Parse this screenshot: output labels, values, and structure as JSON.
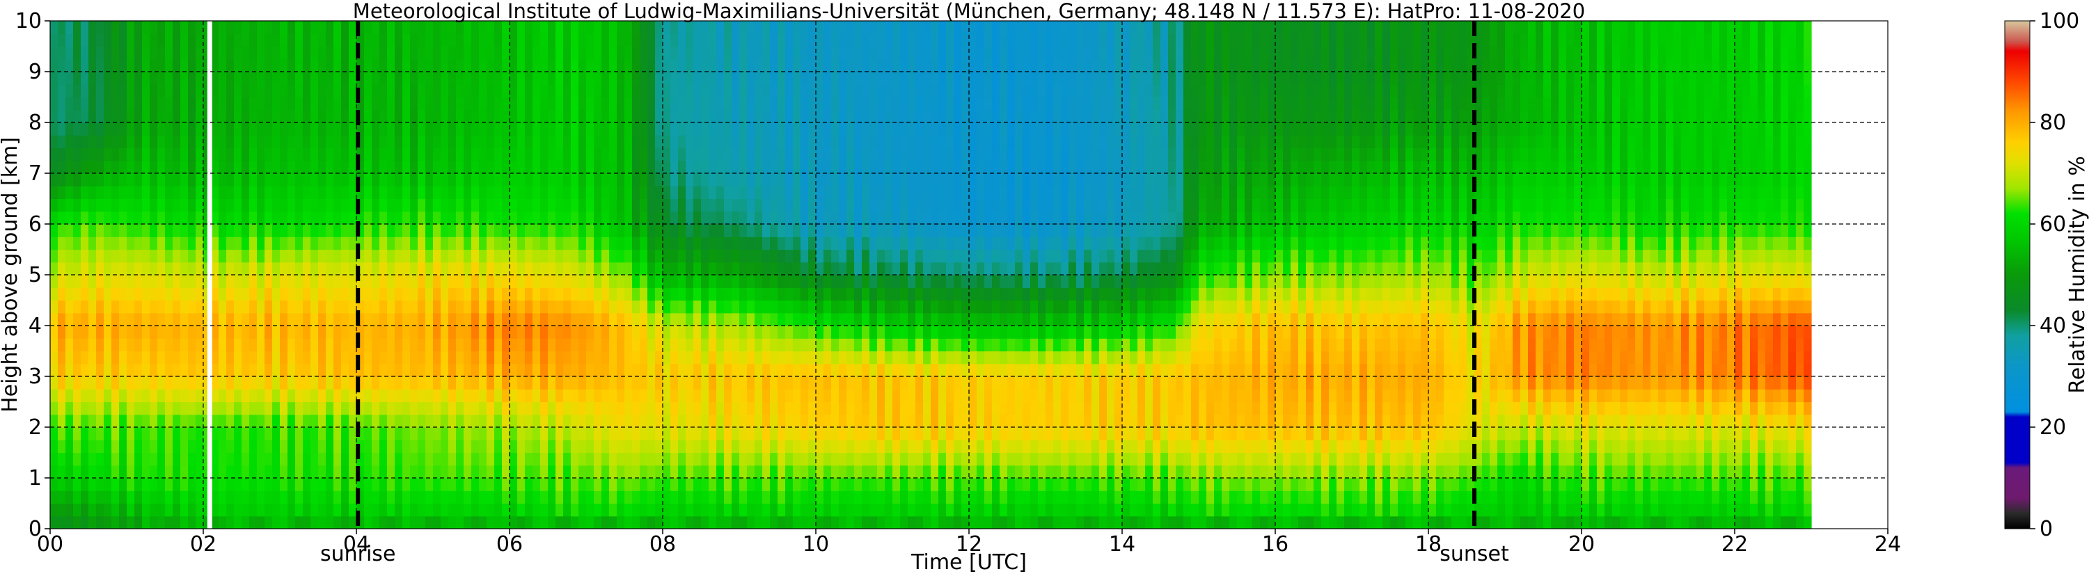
{
  "chart_data": {
    "type": "heatmap",
    "title": "Meteorological Institute of Ludwig-Maximilians-Universität (München, Germany; 48.148 N / 11.573 E):    HatPro: 11-08-2020",
    "xlabel": "Time [UTC]",
    "ylabel": "Height above ground [km]",
    "xlim": [
      0,
      24
    ],
    "ylim": [
      0,
      10
    ],
    "data_extent_x": [
      0,
      23
    ],
    "xticks": [
      0,
      2,
      4,
      6,
      8,
      10,
      12,
      14,
      16,
      18,
      20,
      22,
      24
    ],
    "xtick_labels": [
      "00",
      "02",
      "04",
      "06",
      "08",
      "10",
      "12",
      "14",
      "16",
      "18",
      "20",
      "22",
      "24"
    ],
    "yticks": [
      0,
      1,
      2,
      3,
      4,
      5,
      6,
      7,
      8,
      9,
      10
    ],
    "ytick_labels": [
      "0",
      "1",
      "2",
      "3",
      "4",
      "5",
      "6",
      "7",
      "8",
      "9",
      "10"
    ],
    "grid": true,
    "colorbar": {
      "label": "Relative Humidity in %",
      "range": [
        0,
        100
      ],
      "ticks": [
        0,
        20,
        40,
        60,
        80,
        100
      ],
      "tick_labels": [
        "0",
        "20",
        "40",
        "60",
        "80",
        "100"
      ],
      "stops": [
        {
          "v": 0,
          "color": "#000000"
        },
        {
          "v": 3,
          "color": "#2a2a2a"
        },
        {
          "v": 6,
          "color": "#6e1a6e"
        },
        {
          "v": 12,
          "color": "#6a1a7a"
        },
        {
          "v": 13,
          "color": "#0000c8"
        },
        {
          "v": 22,
          "color": "#0000c8"
        },
        {
          "v": 23,
          "color": "#0090e0"
        },
        {
          "v": 32,
          "color": "#0c96c8"
        },
        {
          "v": 38,
          "color": "#10a0a0"
        },
        {
          "v": 43,
          "color": "#0a8a2a"
        },
        {
          "v": 50,
          "color": "#0a9a0a"
        },
        {
          "v": 57,
          "color": "#00c800"
        },
        {
          "v": 62,
          "color": "#00e000"
        },
        {
          "v": 67,
          "color": "#a0e600"
        },
        {
          "v": 72,
          "color": "#e0e000"
        },
        {
          "v": 76,
          "color": "#ffd000"
        },
        {
          "v": 82,
          "color": "#ff9a00"
        },
        {
          "v": 88,
          "color": "#ff4800"
        },
        {
          "v": 94,
          "color": "#ee0000"
        },
        {
          "v": 96,
          "color": "#cc5a50"
        },
        {
          "v": 100,
          "color": "#d8c8a0"
        }
      ]
    },
    "markers": [
      {
        "x": 4.02,
        "label": "sunrise"
      },
      {
        "x": 18.6,
        "label": "sunset"
      }
    ],
    "missing_data_x": [
      2.08
    ],
    "rh_keyframes": [
      {
        "t": 0.0,
        "p": [
          45,
          58,
          64,
          76,
          80,
          70,
          62,
          45,
          40,
          40,
          40
        ]
      },
      {
        "t": 0.6,
        "p": [
          48,
          60,
          64,
          76,
          80,
          72,
          64,
          52,
          42,
          42,
          42
        ]
      },
      {
        "t": 1.2,
        "p": [
          52,
          62,
          64,
          76,
          80,
          72,
          62,
          56,
          52,
          52,
          52
        ]
      },
      {
        "t": 2.0,
        "p": [
          56,
          62,
          63,
          77,
          79,
          70,
          60,
          54,
          52,
          52,
          52
        ]
      },
      {
        "t": 3.0,
        "p": [
          56,
          62,
          63,
          76,
          79,
          72,
          60,
          56,
          54,
          54,
          54
        ]
      },
      {
        "t": 4.0,
        "p": [
          56,
          62,
          64,
          78,
          79,
          72,
          62,
          56,
          54,
          54,
          54
        ]
      },
      {
        "t": 5.0,
        "p": [
          56,
          64,
          66,
          78,
          80,
          74,
          62,
          56,
          54,
          54,
          54
        ]
      },
      {
        "t": 6.0,
        "p": [
          56,
          64,
          68,
          80,
          84,
          74,
          62,
          58,
          56,
          56,
          56
        ]
      },
      {
        "t": 6.8,
        "p": [
          58,
          64,
          70,
          80,
          83,
          72,
          62,
          58,
          58,
          58,
          58
        ]
      },
      {
        "t": 7.5,
        "p": [
          58,
          66,
          74,
          78,
          78,
          66,
          56,
          55,
          55,
          55,
          55
        ]
      },
      {
        "t": 8.0,
        "p": [
          56,
          64,
          72,
          76,
          70,
          54,
          44,
          40,
          38,
          38,
          38
        ]
      },
      {
        "t": 9.0,
        "p": [
          56,
          64,
          74,
          77,
          68,
          52,
          40,
          36,
          35,
          35,
          35
        ]
      },
      {
        "t": 10.0,
        "p": [
          56,
          64,
          76,
          78,
          62,
          44,
          34,
          33,
          33,
          33,
          33
        ]
      },
      {
        "t": 11.0,
        "p": [
          56,
          64,
          77,
          77,
          58,
          42,
          33,
          32,
          32,
          32,
          32
        ]
      },
      {
        "t": 12.0,
        "p": [
          56,
          64,
          76,
          76,
          56,
          40,
          30,
          30,
          30,
          30,
          30
        ]
      },
      {
        "t": 13.0,
        "p": [
          55,
          64,
          76,
          76,
          56,
          40,
          30,
          29,
          30,
          30,
          30
        ]
      },
      {
        "t": 14.0,
        "p": [
          56,
          64,
          76,
          76,
          58,
          42,
          34,
          33,
          34,
          34,
          34
        ]
      },
      {
        "t": 14.7,
        "p": [
          56,
          64,
          76,
          77,
          62,
          46,
          38,
          38,
          38,
          38,
          38
        ]
      },
      {
        "t": 15.0,
        "p": [
          58,
          66,
          78,
          78,
          74,
          62,
          52,
          50,
          48,
          48,
          48
        ]
      },
      {
        "t": 16.0,
        "p": [
          58,
          66,
          78,
          80,
          78,
          66,
          56,
          52,
          48,
          46,
          46
        ]
      },
      {
        "t": 17.0,
        "p": [
          58,
          66,
          78,
          80,
          77,
          66,
          58,
          54,
          48,
          46,
          46
        ]
      },
      {
        "t": 18.0,
        "p": [
          58,
          66,
          78,
          80,
          78,
          68,
          60,
          56,
          50,
          48,
          48
        ]
      },
      {
        "t": 18.6,
        "p": [
          56,
          64,
          72,
          74,
          72,
          64,
          58,
          54,
          50,
          48,
          48
        ]
      },
      {
        "t": 19.2,
        "p": [
          56,
          60,
          70,
          82,
          82,
          70,
          62,
          58,
          54,
          54,
          54
        ]
      },
      {
        "t": 20.0,
        "p": [
          56,
          64,
          72,
          84,
          84,
          72,
          62,
          58,
          56,
          56,
          56
        ]
      },
      {
        "t": 21.0,
        "p": [
          56,
          64,
          72,
          82,
          82,
          70,
          60,
          58,
          58,
          58,
          58
        ]
      },
      {
        "t": 22.0,
        "p": [
          56,
          64,
          72,
          84,
          84,
          72,
          62,
          58,
          58,
          58,
          58
        ]
      },
      {
        "t": 23.0,
        "p": [
          58,
          64,
          74,
          88,
          88,
          72,
          62,
          60,
          60,
          60,
          60
        ]
      }
    ]
  }
}
